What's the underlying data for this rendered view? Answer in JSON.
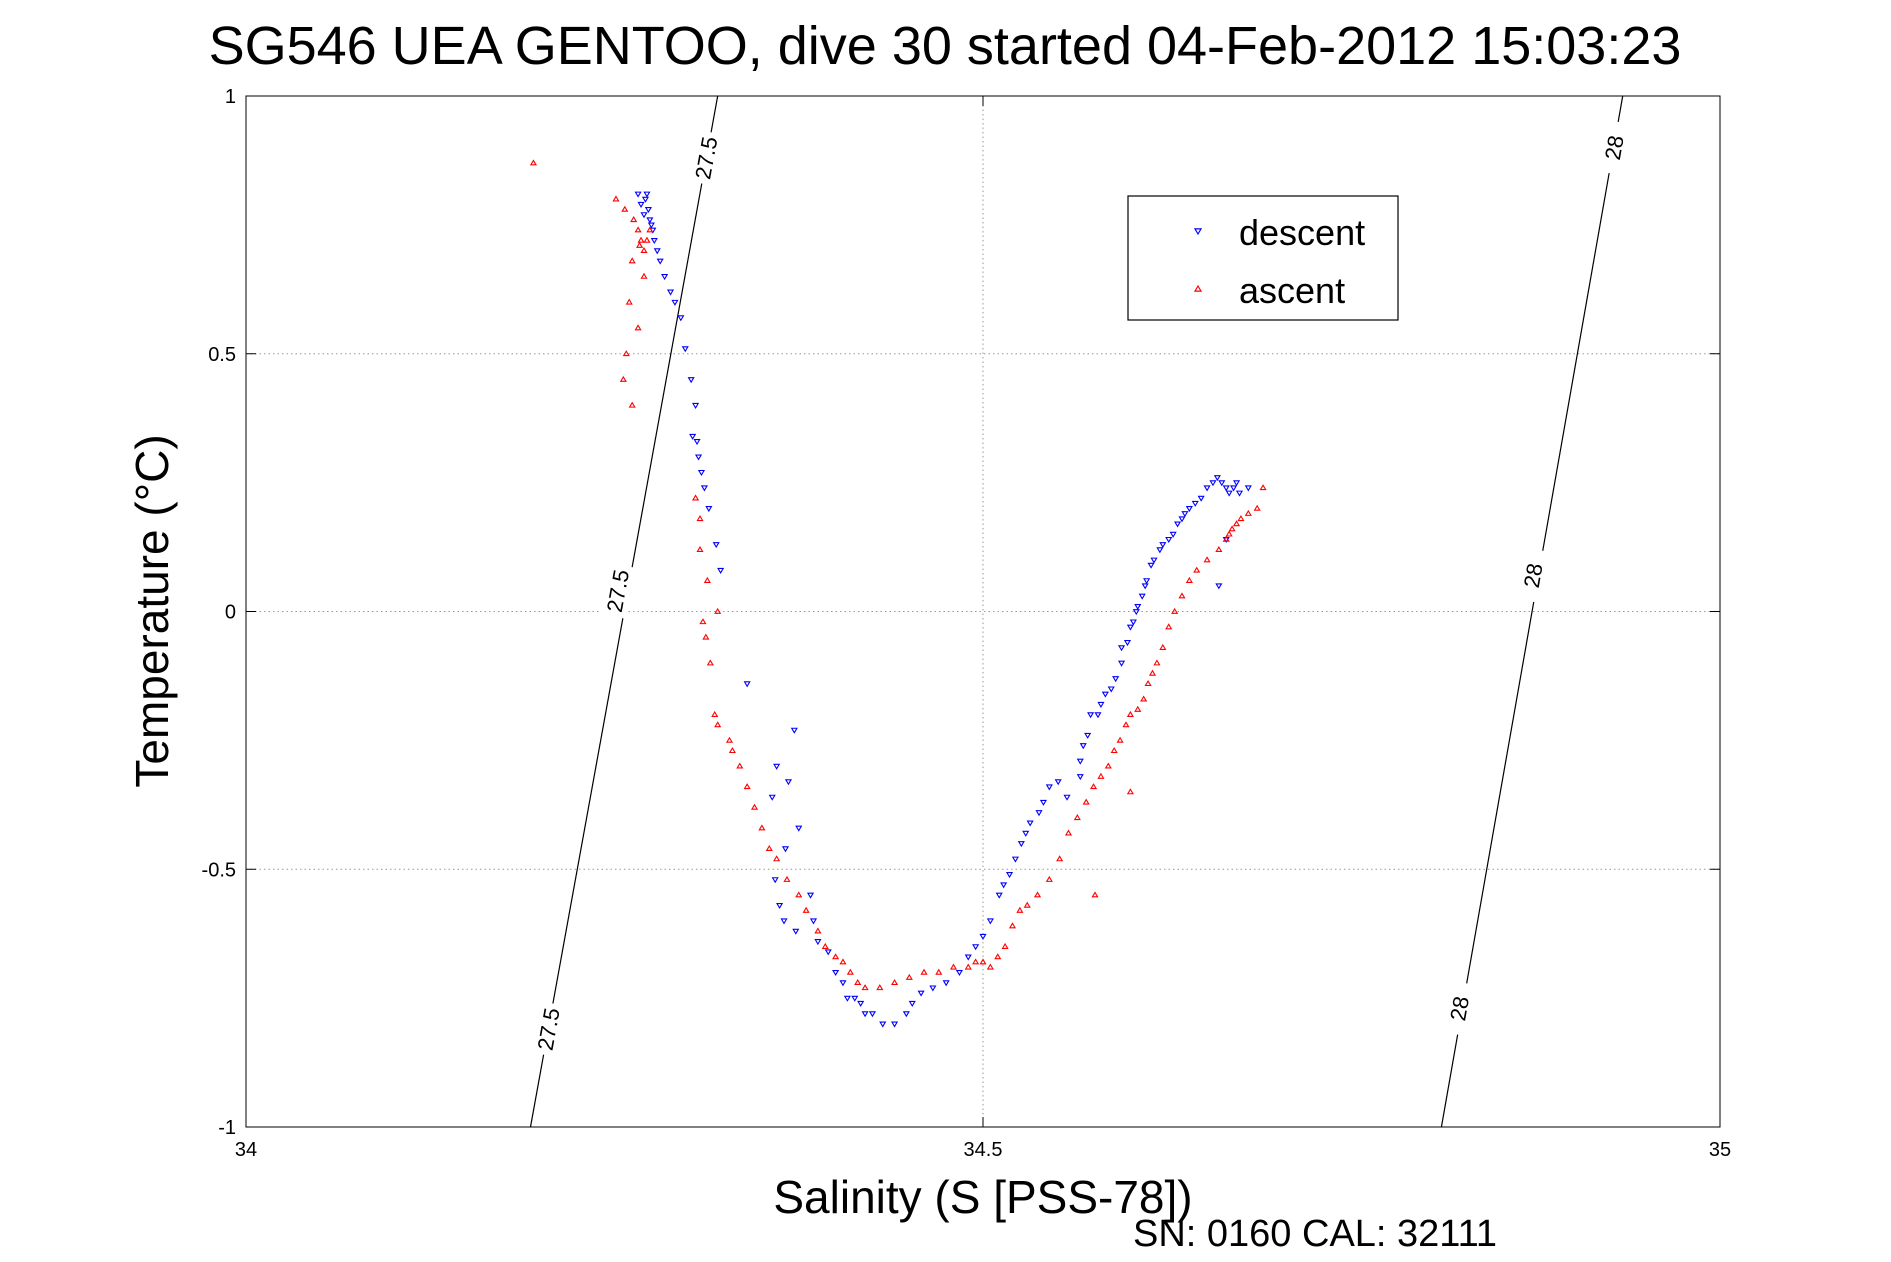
{
  "chart_data": {
    "type": "scatter",
    "title": "SG546 UEA GENTOO, dive 30 started 04-Feb-2012 15:03:23",
    "xlabel": "Salinity (S [PSS-78])",
    "ylabel": "Temperature (°C)",
    "xlim": [
      34,
      35
    ],
    "ylim": [
      -1,
      1
    ],
    "xticks": [
      34,
      34.5,
      35
    ],
    "xtick_labels": [
      "34",
      "34.5",
      "35"
    ],
    "yticks": [
      -1,
      -0.5,
      0,
      0.5,
      1
    ],
    "ytick_labels": [
      "-1",
      "-0.5",
      "0",
      "0.5",
      "1"
    ],
    "grid": true,
    "legend_position": "top-right",
    "footer": "SN: 0160  CAL: 32111",
    "contours": [
      {
        "label": "27.5",
        "x": [
          34.193,
          34.32
        ],
        "y": [
          -1,
          1
        ],
        "label_positions": [
          {
            "x": 34.205,
            "y": -0.81
          },
          {
            "x": 34.252,
            "y": 0.04
          },
          {
            "x": 34.312,
            "y": 0.88
          }
        ]
      },
      {
        "label": "28",
        "x": [
          34.811,
          34.934
        ],
        "y": [
          -1,
          1
        ],
        "label_positions": [
          {
            "x": 34.823,
            "y": -0.77
          },
          {
            "x": 34.873,
            "y": 0.07
          },
          {
            "x": 34.928,
            "y": 0.9
          }
        ]
      }
    ],
    "series": [
      {
        "name": "descent",
        "color": "#0000ff",
        "marker": "triangle-down",
        "x": [
          34.266,
          34.268,
          34.27,
          34.271,
          34.272,
          34.273,
          34.274,
          34.275,
          34.276,
          34.277,
          34.279,
          34.281,
          34.284,
          34.288,
          34.291,
          34.295,
          34.298,
          34.302,
          34.305,
          34.303,
          34.306,
          34.307,
          34.309,
          34.311,
          34.314,
          34.319,
          34.322,
          34.34,
          34.372,
          34.36,
          34.368,
          34.357,
          34.375,
          34.366,
          34.359,
          34.383,
          34.362,
          34.365,
          34.373,
          34.385,
          34.388,
          34.395,
          34.4,
          34.405,
          34.408,
          34.413,
          34.417,
          34.42,
          34.425,
          34.432,
          34.44,
          34.448,
          34.452,
          34.458,
          34.466,
          34.475,
          34.484,
          34.49,
          34.495,
          34.5,
          34.505,
          34.511,
          34.514,
          34.518,
          34.522,
          34.526,
          34.529,
          34.532,
          34.538,
          34.541,
          34.545,
          34.551,
          34.557,
          34.566,
          34.566,
          34.568,
          34.571,
          34.573,
          34.578,
          34.58,
          34.583,
          34.587,
          34.59,
          34.594,
          34.594,
          34.598,
          34.6,
          34.602,
          34.604,
          34.605,
          34.608,
          34.61,
          34.611,
          34.614,
          34.616,
          34.62,
          34.622,
          34.626,
          34.629,
          34.632,
          34.635,
          34.637,
          34.64,
          34.644,
          34.648,
          34.652,
          34.656,
          34.659,
          34.662,
          34.665,
          34.667,
          34.67,
          34.672,
          34.674,
          34.665,
          34.68,
          34.66
        ],
        "y": [
          0.81,
          0.79,
          0.77,
          0.8,
          0.81,
          0.78,
          0.76,
          0.75,
          0.74,
          0.72,
          0.7,
          0.68,
          0.65,
          0.62,
          0.6,
          0.57,
          0.51,
          0.45,
          0.4,
          0.34,
          0.33,
          0.3,
          0.27,
          0.24,
          0.2,
          0.13,
          0.08,
          -0.14,
          -0.23,
          -0.3,
          -0.33,
          -0.36,
          -0.42,
          -0.46,
          -0.52,
          -0.55,
          -0.57,
          -0.6,
          -0.62,
          -0.6,
          -0.64,
          -0.66,
          -0.7,
          -0.72,
          -0.75,
          -0.75,
          -0.76,
          -0.78,
          -0.78,
          -0.8,
          -0.8,
          -0.78,
          -0.76,
          -0.74,
          -0.73,
          -0.72,
          -0.7,
          -0.67,
          -0.65,
          -0.63,
          -0.6,
          -0.55,
          -0.53,
          -0.51,
          -0.48,
          -0.45,
          -0.43,
          -0.41,
          -0.39,
          -0.37,
          -0.34,
          -0.33,
          -0.36,
          -0.32,
          -0.29,
          -0.26,
          -0.24,
          -0.2,
          -0.2,
          -0.18,
          -0.16,
          -0.15,
          -0.13,
          -0.1,
          -0.07,
          -0.06,
          -0.03,
          -0.02,
          0,
          0.01,
          0.03,
          0.05,
          0.06,
          0.09,
          0.1,
          0.12,
          0.13,
          0.14,
          0.15,
          0.17,
          0.18,
          0.19,
          0.2,
          0.21,
          0.22,
          0.24,
          0.25,
          0.26,
          0.25,
          0.24,
          0.23,
          0.24,
          0.25,
          0.23,
          0.14,
          0.24,
          0.05
        ]
      },
      {
        "name": "ascent",
        "color": "#ff0000",
        "marker": "triangle-up",
        "x": [
          34.195,
          34.251,
          34.257,
          34.263,
          34.266,
          34.268,
          34.27,
          34.272,
          34.274,
          34.267,
          34.262,
          34.27,
          34.26,
          34.266,
          34.258,
          34.256,
          34.262,
          34.305,
          34.308,
          34.308,
          34.313,
          34.32,
          34.312,
          34.315,
          34.31,
          34.318,
          34.32,
          34.328,
          34.33,
          34.335,
          34.34,
          34.345,
          34.35,
          34.355,
          34.36,
          34.367,
          34.375,
          34.38,
          34.388,
          34.393,
          34.4,
          34.405,
          34.41,
          34.415,
          34.42,
          34.43,
          34.44,
          34.45,
          34.46,
          34.47,
          34.48,
          34.49,
          34.495,
          34.5,
          34.505,
          34.51,
          34.515,
          34.52,
          34.525,
          34.53,
          34.537,
          34.545,
          34.552,
          34.558,
          34.564,
          34.57,
          34.575,
          34.58,
          34.585,
          34.589,
          34.593,
          34.597,
          34.6,
          34.605,
          34.609,
          34.612,
          34.615,
          34.618,
          34.622,
          34.626,
          34.63,
          34.635,
          34.64,
          34.645,
          34.652,
          34.66,
          34.665,
          34.667,
          34.669,
          34.672,
          34.675,
          34.68,
          34.686,
          34.69,
          34.6,
          34.576
        ],
        "y": [
          0.87,
          0.8,
          0.78,
          0.76,
          0.74,
          0.72,
          0.7,
          0.72,
          0.74,
          0.71,
          0.68,
          0.65,
          0.6,
          0.55,
          0.5,
          0.45,
          0.4,
          0.22,
          0.18,
          0.12,
          0.06,
          0,
          -0.05,
          -0.1,
          -0.02,
          -0.2,
          -0.22,
          -0.25,
          -0.27,
          -0.3,
          -0.34,
          -0.38,
          -0.42,
          -0.46,
          -0.48,
          -0.52,
          -0.55,
          -0.58,
          -0.62,
          -0.65,
          -0.67,
          -0.68,
          -0.7,
          -0.72,
          -0.73,
          -0.73,
          -0.72,
          -0.71,
          -0.7,
          -0.7,
          -0.69,
          -0.69,
          -0.68,
          -0.68,
          -0.69,
          -0.67,
          -0.65,
          -0.61,
          -0.58,
          -0.57,
          -0.55,
          -0.52,
          -0.48,
          -0.43,
          -0.4,
          -0.37,
          -0.34,
          -0.32,
          -0.3,
          -0.27,
          -0.25,
          -0.22,
          -0.2,
          -0.19,
          -0.17,
          -0.14,
          -0.12,
          -0.1,
          -0.07,
          -0.03,
          0,
          0.03,
          0.06,
          0.08,
          0.1,
          0.12,
          0.14,
          0.15,
          0.16,
          0.17,
          0.18,
          0.19,
          0.2,
          0.24,
          -0.35,
          -0.55
        ]
      }
    ]
  }
}
